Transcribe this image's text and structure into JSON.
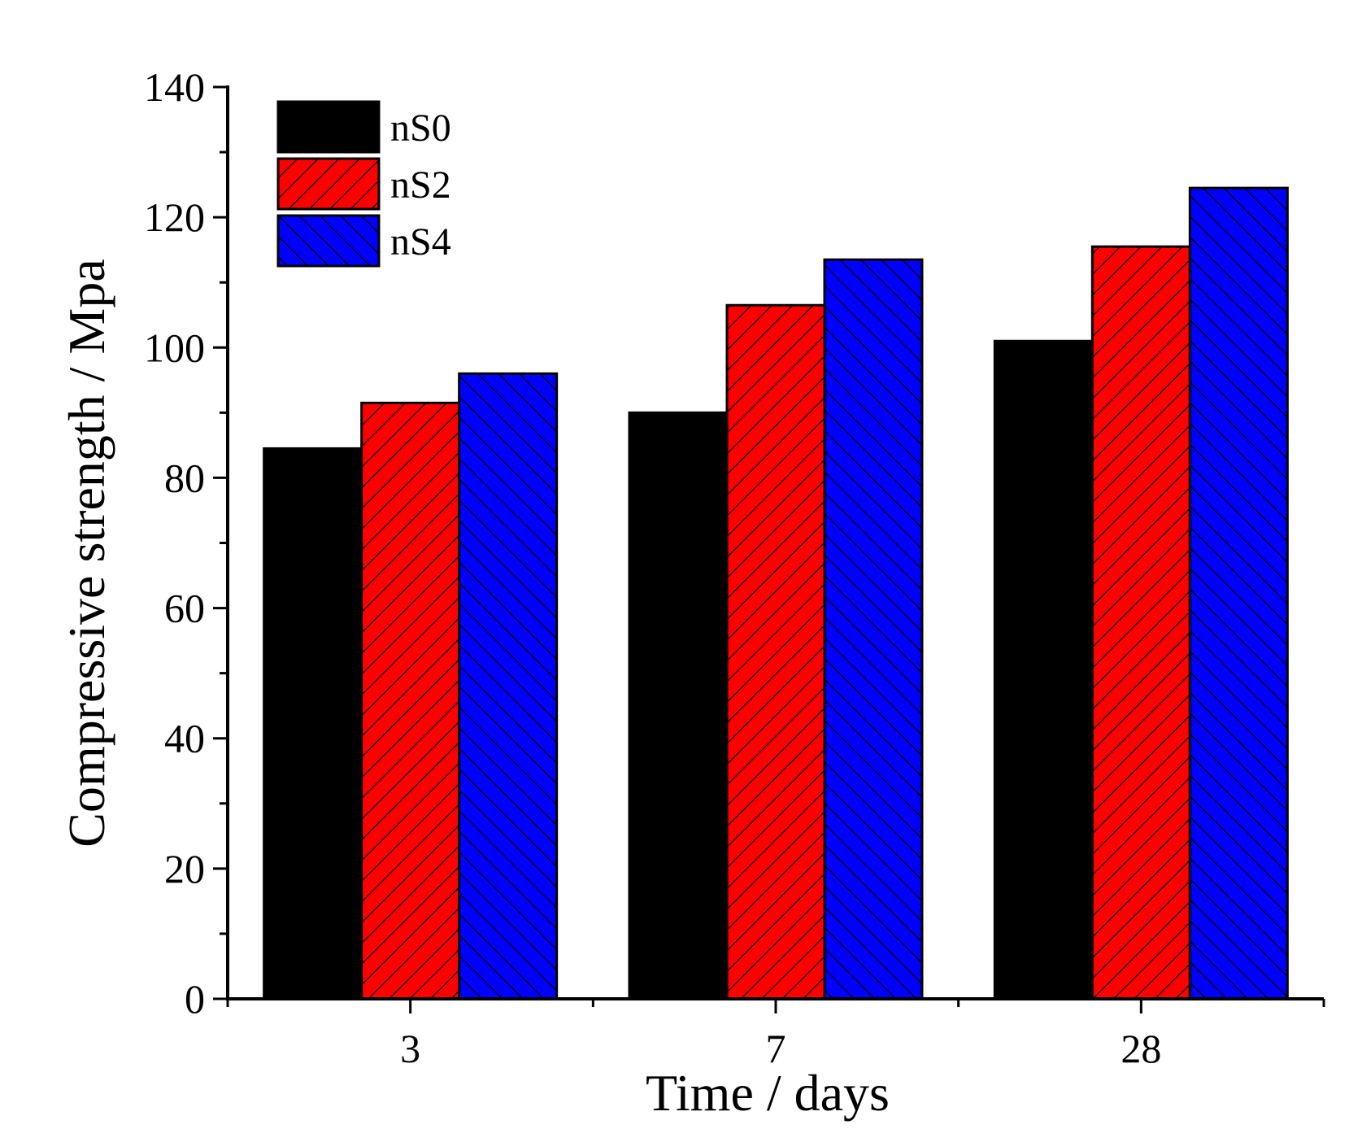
{
  "chart_data": {
    "type": "bar",
    "title": "",
    "xlabel": "Time / days",
    "ylabel": "Compressive strength / Mpa",
    "ylim": [
      0,
      140
    ],
    "y_ticks": [
      0,
      20,
      40,
      60,
      80,
      100,
      120,
      140
    ],
    "categories": [
      "3",
      "7",
      "28"
    ],
    "legend_position": "top-left",
    "grid": false,
    "series": [
      {
        "name": "nS0",
        "values": [
          84.5,
          90.0,
          101.0
        ],
        "color": "#000000",
        "pattern": "solid"
      },
      {
        "name": "nS2",
        "values": [
          91.5,
          106.5,
          115.5
        ],
        "color": "#ff0000",
        "pattern": "hatch-forward"
      },
      {
        "name": "nS4",
        "values": [
          96.0,
          113.5,
          124.5
        ],
        "color": "#0000ff",
        "pattern": "hatch-backward"
      }
    ]
  }
}
